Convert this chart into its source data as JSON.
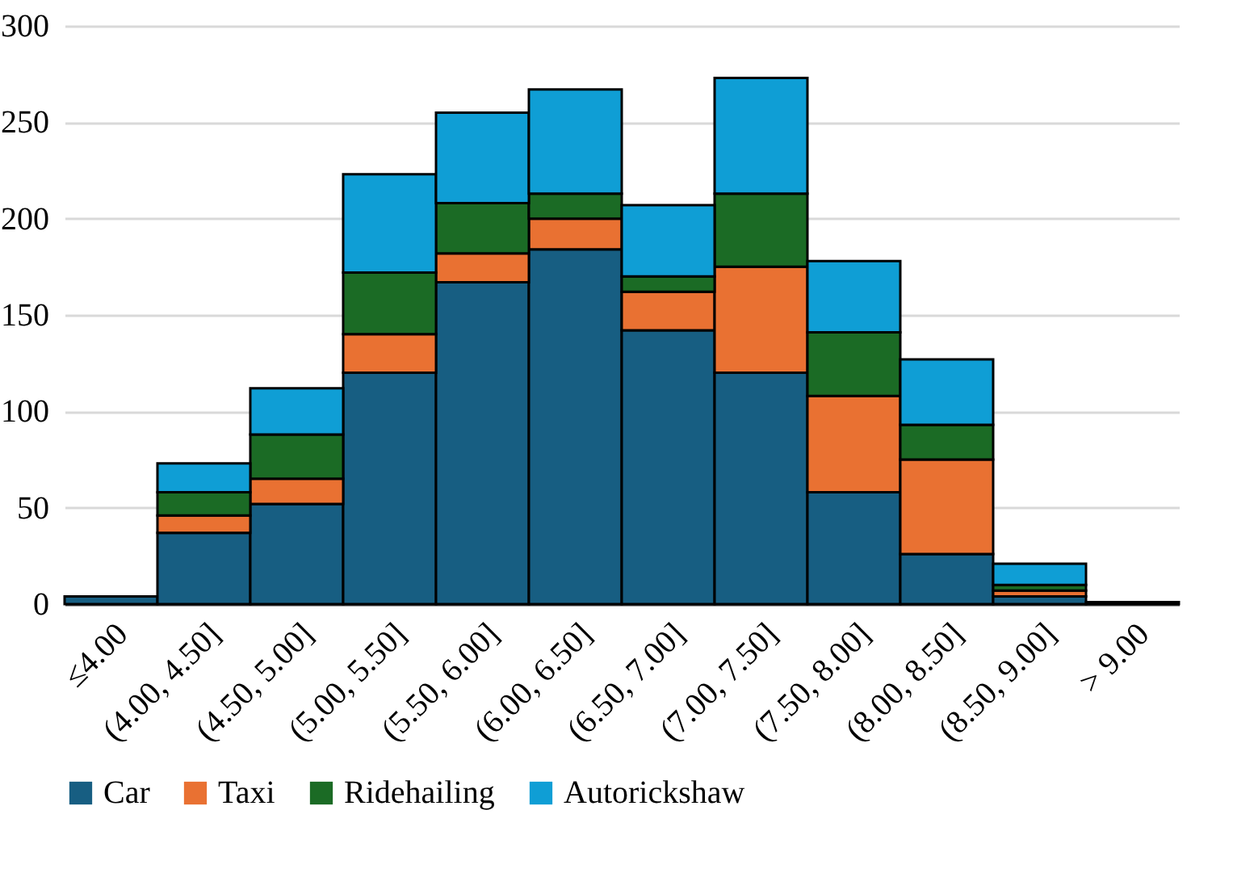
{
  "chart_data": {
    "type": "bar",
    "stacked": true,
    "categories": [
      "≤4.00",
      "(4.00, 4.50]",
      "(4.50, 5.00]",
      "(5.00, 5.50]",
      "(5.50, 6.00]",
      "(6.00, 6.50]",
      "(6.50, 7.00]",
      "(7.00, 7.50]",
      "(7.50, 8.00]",
      "(8.00, 8.50]",
      "(8.50, 9.00]",
      "> 9.00"
    ],
    "series": [
      {
        "name": "Car",
        "color": "#175e82",
        "values": [
          4,
          37,
          52,
          120,
          167,
          184,
          142,
          120,
          58,
          26,
          4,
          1
        ]
      },
      {
        "name": "Taxi",
        "color": "#e97132",
        "values": [
          0,
          9,
          13,
          20,
          15,
          16,
          20,
          55,
          50,
          49,
          3,
          0
        ]
      },
      {
        "name": "Ridehailing",
        "color": "#1b6b25",
        "values": [
          0,
          12,
          23,
          32,
          26,
          13,
          8,
          38,
          33,
          18,
          3,
          0
        ]
      },
      {
        "name": "Autorickshaw",
        "color": "#0f9ed5",
        "values": [
          0,
          15,
          24,
          51,
          47,
          54,
          37,
          60,
          37,
          34,
          11,
          0
        ]
      }
    ],
    "ylim": [
      0,
      300
    ],
    "yticks": [
      0,
      50,
      100,
      150,
      200,
      250,
      300
    ],
    "grid": "y",
    "legend": "bottom"
  }
}
